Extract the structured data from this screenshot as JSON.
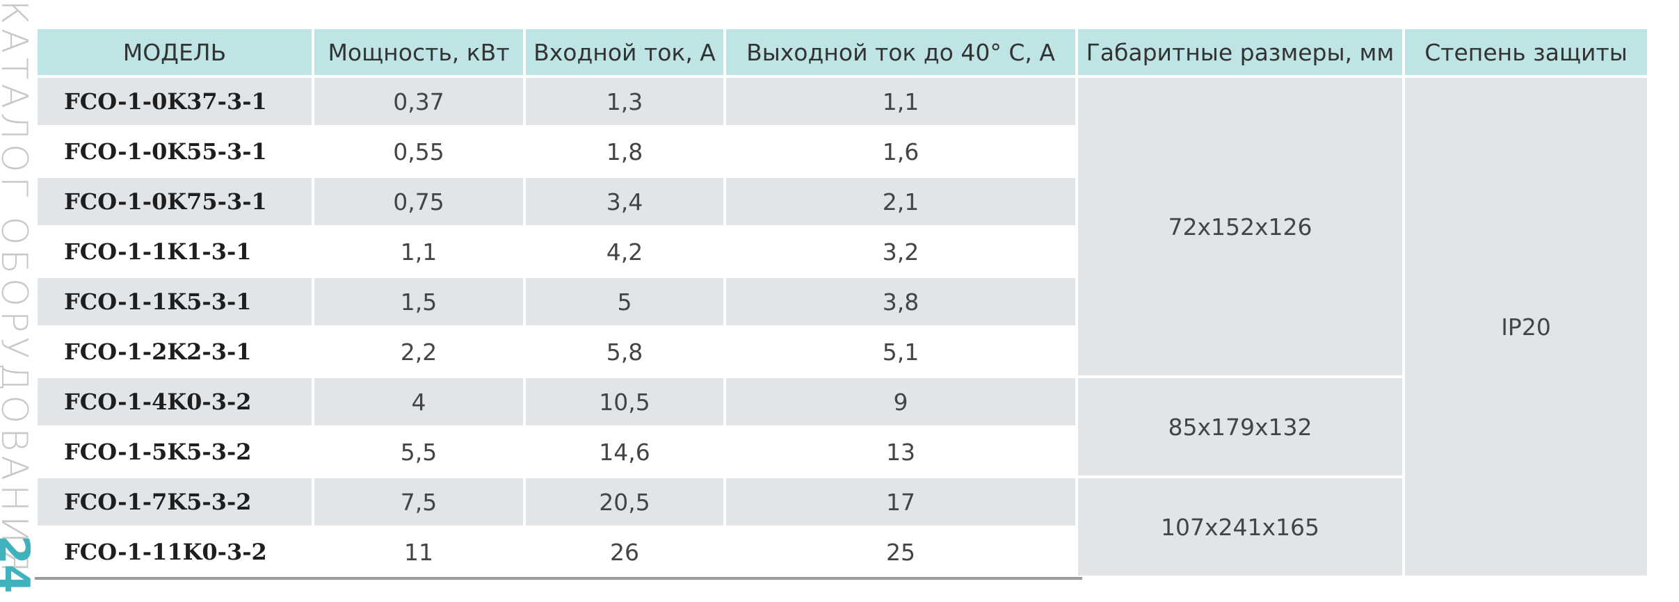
{
  "side": {
    "caption": "КАТАЛОГ ОБОРУДОВАНИЯ",
    "page_number": "24"
  },
  "table": {
    "headers": [
      "МОДЕЛЬ",
      "Мощность, кВт",
      "Входной ток, А",
      "Выходной ток до 40° С, А",
      "Габаритные размеры, мм",
      "Степень защиты"
    ],
    "rows": [
      {
        "model": "FCO-1-0K37-3-1",
        "power": "0,37",
        "input": "1,3",
        "output": "1,1"
      },
      {
        "model": "FCO-1-0K55-3-1",
        "power": "0,55",
        "input": "1,8",
        "output": "1,6"
      },
      {
        "model": "FCO-1-0K75-3-1",
        "power": "0,75",
        "input": "3,4",
        "output": "2,1"
      },
      {
        "model": "FCO-1-1K1-3-1",
        "power": "1,1",
        "input": "4,2",
        "output": "3,2"
      },
      {
        "model": "FCO-1-1K5-3-1",
        "power": "1,5",
        "input": "5",
        "output": "3,8"
      },
      {
        "model": "FCO-1-2K2-3-1",
        "power": "2,2",
        "input": "5,8",
        "output": "5,1"
      },
      {
        "model": "FCO-1-4K0-3-2",
        "power": "4",
        "input": "10,5",
        "output": "9"
      },
      {
        "model": "FCO-1-5K5-3-2",
        "power": "5,5",
        "input": "14,6",
        "output": "13"
      },
      {
        "model": "FCO-1-7K5-3-2",
        "power": "7,5",
        "input": "20,5",
        "output": "17"
      },
      {
        "model": "FCO-1-11K0-3-2",
        "power": "11",
        "input": "26",
        "output": "25"
      }
    ],
    "dimensions": [
      "72x152x126",
      "85x179x132",
      "107x241x165"
    ],
    "protection": "IP20"
  },
  "colors": {
    "header_bg": "#bfe4e5",
    "row_shade": "#e1e5e8",
    "accent": "#3fb3bd"
  }
}
